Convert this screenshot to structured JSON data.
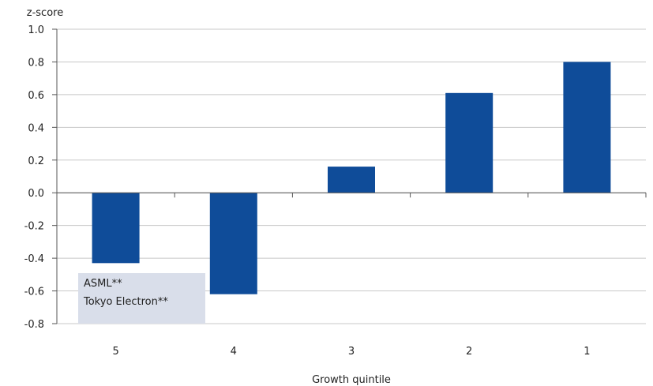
{
  "chart_data": {
    "type": "bar",
    "categories": [
      "5",
      "4",
      "3",
      "2",
      "1"
    ],
    "values": [
      -0.43,
      -0.62,
      0.16,
      0.61,
      0.8
    ],
    "ylabel": "z-score",
    "xlabel": "Growth quintile",
    "ylim": [
      -0.8,
      1.0
    ],
    "yticks": [
      "1.0",
      "0.8",
      "0.6",
      "0.4",
      "0.2",
      "0.0",
      "-0.2",
      "-0.4",
      "-0.6",
      "-0.8"
    ],
    "grid": true,
    "annotation": [
      "ASML**",
      "Tokyo Electron**"
    ],
    "colors": {
      "bar": "#0f4c99",
      "grid": "#c8c8c8",
      "axis": "#555555",
      "annotation_bg": "#d9deea"
    }
  }
}
